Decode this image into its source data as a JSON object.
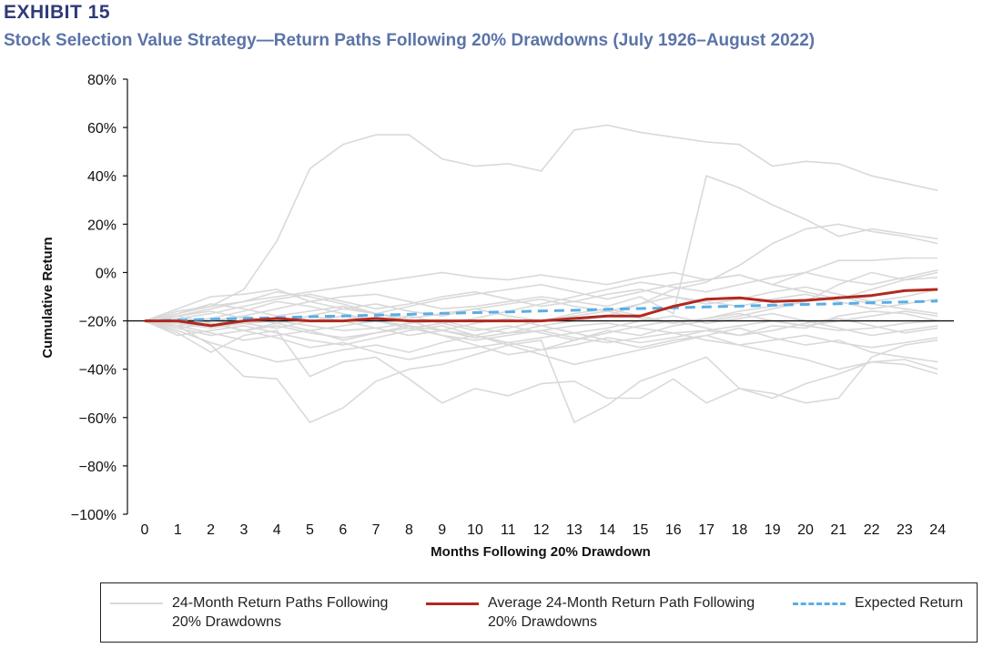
{
  "header": {
    "exhibit": "EXHIBIT 15",
    "subtitle": "Stock Selection Value Strategy—Return Paths Following 20% Drawdowns (July 1926–August 2022)"
  },
  "chart_data": {
    "type": "line",
    "title": "Stock Selection Value Strategy—Return Paths Following 20% Drawdowns (July 1926–August 2022)",
    "xlabel": "Months Following 20% Drawdown",
    "ylabel": "Cumulative Return",
    "x": [
      0,
      1,
      2,
      3,
      4,
      5,
      6,
      7,
      8,
      9,
      10,
      11,
      12,
      13,
      14,
      15,
      16,
      17,
      18,
      19,
      20,
      21,
      22,
      23,
      24
    ],
    "ylim": [
      -100,
      80
    ],
    "yticks": [
      -100,
      -80,
      -60,
      -40,
      -20,
      0,
      20,
      40,
      60,
      80
    ],
    "ytick_labels": [
      "−100%",
      "−80%",
      "−60%",
      "−40%",
      "−20%",
      "0%",
      "20%",
      "40%",
      "60%",
      "80%"
    ],
    "xtick_labels": [
      "0",
      "1",
      "2",
      "3",
      "4",
      "5",
      "6",
      "7",
      "8",
      "9",
      "10",
      "11",
      "12",
      "13",
      "14",
      "15",
      "16",
      "17",
      "18",
      "19",
      "20",
      "21",
      "22",
      "23",
      "24"
    ],
    "reference_line": -20,
    "grid": false,
    "legend_position": "bottom",
    "colors": {
      "paths": "#d9d9d9",
      "average": "#b2281e",
      "expected": "#5aaee6",
      "reference": "#111111"
    },
    "series": [
      {
        "name": "Average 24-Month Return Path Following 20% Drawdowns",
        "style": "average",
        "values": [
          -20,
          -20,
          -22,
          -20,
          -19,
          -20,
          -20,
          -19,
          -20,
          -20,
          -20,
          -20,
          -20,
          -19,
          -18,
          -18,
          -14,
          -11,
          -10.5,
          -12,
          -11.5,
          -10.5,
          -9.5,
          -7.5,
          -7
        ]
      },
      {
        "name": "Expected Return",
        "style": "expected",
        "values": [
          -20,
          -19.7,
          -19.3,
          -19,
          -18.7,
          -18.3,
          -18,
          -17.6,
          -17.3,
          -16.9,
          -16.6,
          -16.3,
          -15.9,
          -15.6,
          -15.2,
          -14.9,
          -14.6,
          -14.2,
          -13.9,
          -13.5,
          -13.2,
          -12.9,
          -12.5,
          -12.2,
          -11.8
        ]
      },
      {
        "name": "24-Month Return Paths Following 20% Drawdowns",
        "style": "paths",
        "paths": [
          [
            -20,
            -17,
            -14,
            -7,
            13,
            43,
            53,
            57,
            57,
            47,
            44,
            45,
            42,
            59,
            61,
            58,
            56,
            54,
            53,
            44,
            46,
            45,
            40,
            37,
            34
          ],
          [
            -20,
            -22,
            -30,
            -43,
            -44,
            -62,
            -56,
            -45,
            -40,
            -38,
            -34,
            -30,
            -28,
            -62,
            -55,
            -45,
            -40,
            -35,
            -48,
            -50,
            -54,
            -52,
            -35,
            -30,
            -28
          ],
          [
            -20,
            -25,
            -33,
            -26,
            -24,
            -43,
            -37,
            -35,
            -44,
            -54,
            -48,
            -51,
            -46,
            -45,
            -52,
            -52,
            -44,
            -54,
            -48,
            -52,
            -46,
            -42,
            -37,
            -36,
            -40
          ],
          [
            -20,
            -15,
            -10,
            -9,
            -7,
            -12,
            -10,
            -9,
            -12,
            -15,
            -14,
            -12,
            -10,
            -12,
            -14,
            -10,
            -17,
            40,
            35,
            28,
            22,
            15,
            18,
            16,
            14
          ],
          [
            -20,
            -18,
            -15,
            -12,
            -10,
            -8,
            -6,
            -4,
            -2,
            0,
            -2,
            -3,
            -1,
            -3,
            -5,
            -2,
            0,
            -3,
            -1,
            -5,
            0,
            5,
            5,
            6,
            6
          ],
          [
            -20,
            -22,
            -25,
            -28,
            -26,
            -24,
            -28,
            -25,
            -22,
            -26,
            -30,
            -34,
            -32,
            -28,
            -24,
            -26,
            -22,
            -20,
            -18,
            -15,
            -12,
            -5,
            0,
            -3,
            -2
          ],
          [
            -20,
            -16,
            -14,
            -12,
            -8,
            -10,
            -13,
            -17,
            -20,
            -24,
            -27,
            -25,
            -22,
            -20,
            -18,
            -13,
            -7,
            -4,
            3,
            12,
            18,
            20,
            17,
            15,
            12
          ],
          [
            -20,
            -23,
            -21,
            -24,
            -27,
            -31,
            -29,
            -33,
            -36,
            -33,
            -31,
            -29,
            -32,
            -30,
            -27,
            -29,
            -27,
            -24,
            -26,
            -22,
            -23,
            -18,
            -16,
            -17,
            -20
          ],
          [
            -20,
            -19,
            -22,
            -18,
            -15,
            -12,
            -15,
            -17,
            -14,
            -11,
            -9,
            -7,
            -5,
            -8,
            -11,
            -8,
            -5,
            -3,
            -1,
            -5,
            -8,
            -11,
            -7,
            -3,
            0
          ],
          [
            -20,
            -21,
            -19,
            -16,
            -12,
            -14,
            -17,
            -20,
            -23,
            -21,
            -19,
            -16,
            -13,
            -10,
            -7,
            -4,
            -6,
            -8,
            -5,
            -2,
            0,
            -3,
            -5,
            -2,
            1
          ],
          [
            -20,
            -24,
            -29,
            -33,
            -37,
            -35,
            -32,
            -30,
            -33,
            -29,
            -26,
            -30,
            -34,
            -38,
            -35,
            -32,
            -29,
            -26,
            -30,
            -33,
            -36,
            -40,
            -37,
            -38,
            -42
          ],
          [
            -20,
            -20,
            -19,
            -21,
            -23,
            -20,
            -18,
            -20,
            -22,
            -24,
            -26,
            -23,
            -20,
            -17,
            -15,
            -18,
            -21,
            -19,
            -16,
            -14,
            -12,
            -10,
            -13,
            -15,
            -17
          ],
          [
            -20,
            -26,
            -24,
            -22,
            -25,
            -28,
            -30,
            -27,
            -24,
            -22,
            -26,
            -29,
            -27,
            -25,
            -28,
            -31,
            -28,
            -26,
            -23,
            -27,
            -30,
            -28,
            -33,
            -35,
            -37
          ],
          [
            -20,
            -18,
            -16,
            -19,
            -21,
            -18,
            -15,
            -13,
            -16,
            -18,
            -15,
            -13,
            -11,
            -14,
            -16,
            -13,
            -10,
            -12,
            -14,
            -11,
            -9,
            -12,
            -15,
            -13,
            -11
          ],
          [
            -20,
            -21,
            -23,
            -21,
            -20,
            -22,
            -24,
            -23,
            -21,
            -20,
            -23,
            -25,
            -24,
            -22,
            -21,
            -23,
            -25,
            -24,
            -22,
            -20,
            -22,
            -24,
            -23,
            -21,
            -20
          ],
          [
            -20,
            -17,
            -13,
            -15,
            -18,
            -16,
            -14,
            -17,
            -19,
            -17,
            -15,
            -18,
            -20,
            -18,
            -16,
            -19,
            -21,
            -19,
            -17,
            -20,
            -22,
            -20,
            -18,
            -16,
            -18
          ],
          [
            -20,
            -23,
            -26,
            -24,
            -22,
            -25,
            -27,
            -25,
            -23,
            -26,
            -28,
            -26,
            -24,
            -27,
            -29,
            -27,
            -25,
            -28,
            -30,
            -28,
            -26,
            -29,
            -31,
            -29,
            -27
          ],
          [
            -20,
            -19,
            -17,
            -14,
            -11,
            -9,
            -12,
            -15,
            -13,
            -10,
            -8,
            -11,
            -14,
            -12,
            -9,
            -7,
            -10,
            -13,
            -11,
            -8,
            -6,
            -9,
            -12,
            -10,
            -7
          ],
          [
            -20,
            -22,
            -20,
            -18,
            -21,
            -24,
            -22,
            -20,
            -18,
            -21,
            -24,
            -22,
            -25,
            -28,
            -25,
            -22,
            -20,
            -23,
            -26,
            -24,
            -21,
            -19,
            -22,
            -25,
            -23
          ],
          [
            -20,
            -18,
            -21,
            -24,
            -21,
            -18,
            -20,
            -23,
            -26,
            -24,
            -21,
            -19,
            -22,
            -25,
            -23,
            -20,
            -18,
            -21,
            -19,
            -17,
            -20,
            -23,
            -26,
            -24,
            -22
          ]
        ]
      }
    ]
  },
  "legend": {
    "paths_label": "24-Month Return Paths Following\n20% Drawdowns",
    "average_label": "Average 24-Month Return Path Following\n20% Drawdowns",
    "expected_label": "Expected Return"
  }
}
